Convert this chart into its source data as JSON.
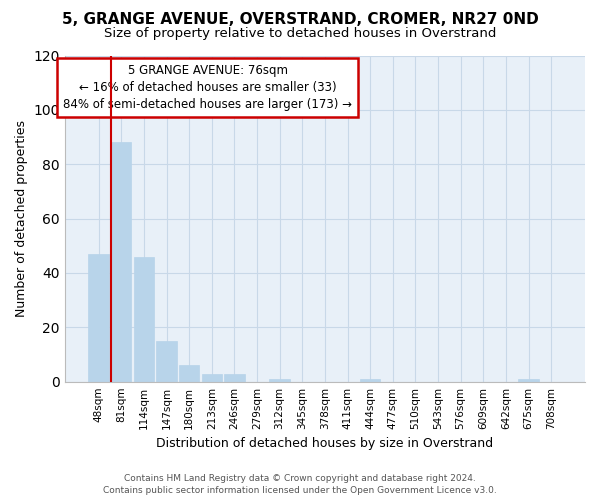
{
  "title": "5, GRANGE AVENUE, OVERSTRAND, CROMER, NR27 0ND",
  "subtitle": "Size of property relative to detached houses in Overstrand",
  "xlabel": "Distribution of detached houses by size in Overstrand",
  "ylabel": "Number of detached properties",
  "bar_labels": [
    "48sqm",
    "81sqm",
    "114sqm",
    "147sqm",
    "180sqm",
    "213sqm",
    "246sqm",
    "279sqm",
    "312sqm",
    "345sqm",
    "378sqm",
    "411sqm",
    "444sqm",
    "477sqm",
    "510sqm",
    "543sqm",
    "576sqm",
    "609sqm",
    "642sqm",
    "675sqm",
    "708sqm"
  ],
  "bar_values": [
    47,
    88,
    46,
    15,
    6,
    3,
    3,
    0,
    1,
    0,
    0,
    0,
    1,
    0,
    0,
    0,
    0,
    0,
    0,
    1,
    0
  ],
  "bar_color": "#b8d4ea",
  "red_line_x": 0.5,
  "ylim": [
    0,
    120
  ],
  "yticks": [
    0,
    20,
    40,
    60,
    80,
    100,
    120
  ],
  "annotation_title": "5 GRANGE AVENUE: 76sqm",
  "annotation_line1": "← 16% of detached houses are smaller (33)",
  "annotation_line2": "84% of semi-detached houses are larger (173) →",
  "annotation_box_facecolor": "#ffffff",
  "annotation_box_edgecolor": "#cc0000",
  "footer_line1": "Contains HM Land Registry data © Crown copyright and database right 2024.",
  "footer_line2": "Contains public sector information licensed under the Open Government Licence v3.0.",
  "plot_bg_color": "#e8f0f8",
  "fig_bg_color": "#ffffff",
  "grid_color": "#c8d8e8",
  "title_fontsize": 11,
  "subtitle_fontsize": 9.5,
  "axis_label_fontsize": 9,
  "tick_fontsize": 7.5,
  "annotation_fontsize": 8.5,
  "footer_fontsize": 6.5
}
